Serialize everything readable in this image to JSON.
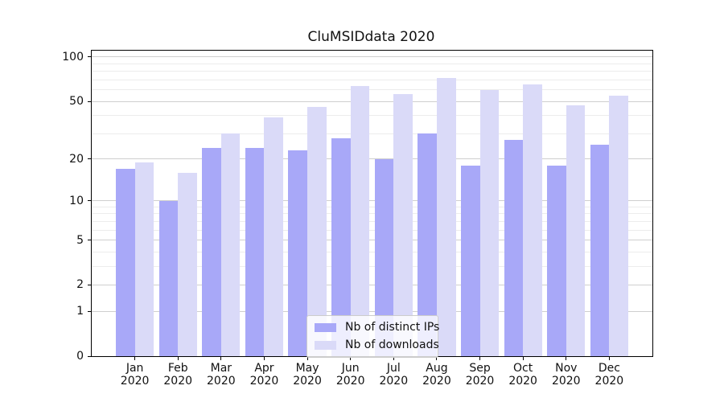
{
  "chart_data": {
    "type": "bar",
    "title": "CluMSIDdata 2020",
    "categories": [
      "Jan 2020",
      "Feb 2020",
      "Mar 2020",
      "Apr 2020",
      "May 2020",
      "Jun 2020",
      "Jul 2020",
      "Aug 2020",
      "Sep 2020",
      "Oct 2020",
      "Nov 2020",
      "Dec 2020"
    ],
    "series": [
      {
        "name": "Nb of distinct IPs",
        "color": "#a8a8f8",
        "values": [
          17,
          10,
          24,
          24,
          23,
          28,
          20,
          30,
          18,
          27,
          18,
          25
        ]
      },
      {
        "name": "Nb of downloads",
        "color": "#dadaf8",
        "values": [
          19,
          16,
          30,
          39,
          46,
          64,
          56,
          72,
          60,
          65,
          47,
          55
        ]
      }
    ],
    "xlabel": "",
    "ylabel": "",
    "yscale": "log1p",
    "ylim": [
      0,
      110.5
    ],
    "yticks_major": [
      0,
      1,
      2,
      5,
      10,
      20,
      50,
      100
    ],
    "yticks_minor": [
      3,
      4,
      6,
      7,
      8,
      9,
      30,
      40,
      60,
      70,
      80,
      90
    ],
    "grid": "both",
    "legend_position": "lower-center-inside",
    "colors": {
      "grid_major": "#cfcfcf",
      "grid_minor": "#ececec",
      "axis": "#000000",
      "background": "#ffffff",
      "text": "#111111"
    }
  }
}
